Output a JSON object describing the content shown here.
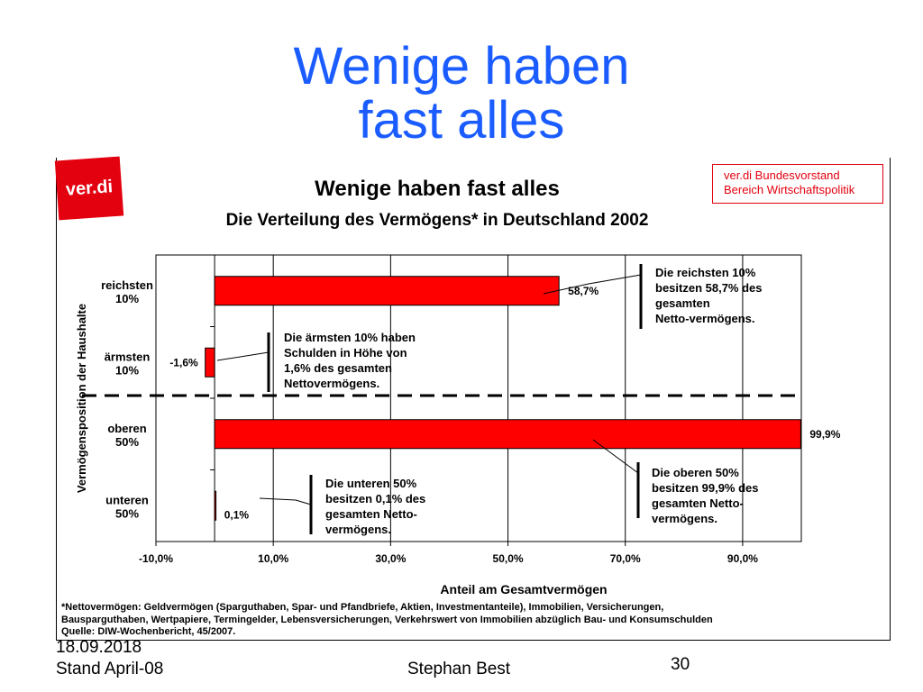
{
  "slide": {
    "title_line1": "Wenige haben",
    "title_line2": "fast alles",
    "footer_date": "18.09.2018",
    "footer_stand": "Stand April-08",
    "footer_author": "Stephan Best",
    "page_number": "30"
  },
  "logo_text": "ver.di",
  "info_box": {
    "line1": "ver.di Bundesvorstand",
    "line2": "Bereich Wirtschaftspolitik"
  },
  "colors": {
    "title_blue": "#1a5cff",
    "bar_red": "#ff0000",
    "logo_red": "#e3000f"
  },
  "chart_data": {
    "type": "bar",
    "orientation": "horizontal",
    "title": "Wenige haben fast alles",
    "subtitle": "Die Verteilung des Vermögens* in Deutschland 2002",
    "xlabel": "Anteil am Gesamtvermögen",
    "ylabel": "Vermögensposition der Haushalte",
    "categories": [
      {
        "line1": "reichsten",
        "line2": "10%"
      },
      {
        "line1": "ärmsten",
        "line2": "10%"
      },
      {
        "line1": "oberen",
        "line2": "50%"
      },
      {
        "line1": "unteren",
        "line2": "50%"
      }
    ],
    "values": [
      58.7,
      -1.6,
      99.9,
      0.1
    ],
    "value_labels": [
      "58,7%",
      "-1,6%",
      "99,9%",
      "0,1%"
    ],
    "xlim": [
      -10,
      100
    ],
    "xticks": [
      -10,
      10,
      30,
      50,
      70,
      90
    ],
    "xtick_labels": [
      "-10,0%",
      "10,0%",
      "30,0%",
      "50,0%",
      "70,0%",
      "90,0%"
    ],
    "divider_between": [
      1,
      2
    ],
    "annotations": [
      {
        "lines": [
          "Die reichsten 10%",
          "besitzen 58,7% des",
          "gesamten",
          "Netto-vermögens."
        ]
      },
      {
        "lines": [
          "Die ärmsten 10% haben",
          "Schulden in Höhe von",
          "1,6% des gesamten",
          "Nettovermögens."
        ]
      },
      {
        "lines": [
          "Die oberen 50%",
          "besitzen 99,9% des",
          "gesamten Netto-",
          "vermögens."
        ]
      },
      {
        "lines": [
          "Die unteren 50%",
          "besitzen 0,1% des",
          "gesamten Netto-",
          "vermögens."
        ]
      }
    ],
    "footnote": [
      "*Nettovermögen: Geldvermögen (Sparguthaben, Spar- und Pfandbriefe, Aktien, Investmentanteile), Immobilien, Versicherungen,",
      "Bausparguthaben, Wertpapiere, Termingelder, Lebensversicherungen, Verkehrswert von Immobilien abzüglich Bau- und Konsumschulden",
      "Quelle: DIW-Wochenbericht, 45/2007."
    ]
  }
}
